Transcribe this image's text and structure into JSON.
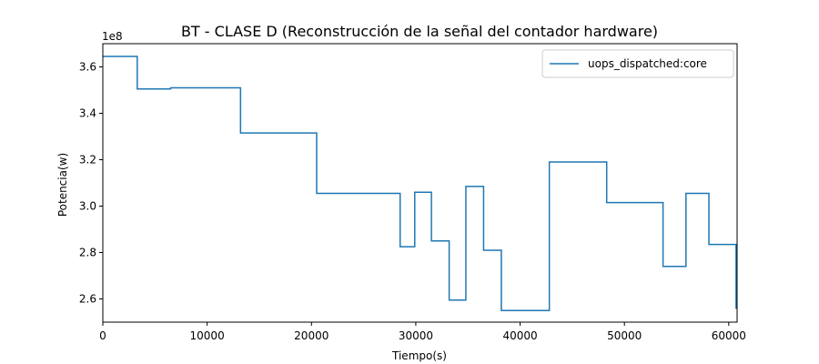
{
  "chart_data": {
    "type": "line",
    "step": true,
    "title": "BT - CLASE D (Reconstrucción de la señal del contador hardware)",
    "xlabel": "Tiempo(s)",
    "ylabel": "Potencia(w)",
    "y_offset_text": "1e8",
    "xlim": [
      0,
      60800
    ],
    "ylim": [
      2.5,
      3.7
    ],
    "y_scale_note": "values in units of 1e8",
    "xticks": [
      0,
      10000,
      20000,
      30000,
      40000,
      50000,
      60000
    ],
    "xtick_labels": [
      "0",
      "10000",
      "20000",
      "30000",
      "40000",
      "50000",
      "60000"
    ],
    "yticks": [
      2.6,
      2.8,
      3.0,
      3.2,
      3.4,
      3.6
    ],
    "ytick_labels": [
      "2.6",
      "2.8",
      "3.0",
      "3.2",
      "3.4",
      "3.6"
    ],
    "grid": false,
    "legend_position": "top-right",
    "series": [
      {
        "name": "uops_dispatched:core",
        "color": "#1f77b4",
        "x": [
          0,
          3300,
          6500,
          13200,
          20500,
          28500,
          29900,
          31500,
          33200,
          34800,
          36500,
          38200,
          42800,
          48300,
          53700,
          55900,
          58100,
          60700,
          60800
        ],
        "y": [
          3.645,
          3.505,
          3.51,
          3.315,
          3.055,
          2.825,
          3.06,
          2.85,
          2.595,
          3.085,
          2.81,
          2.55,
          3.19,
          3.015,
          2.74,
          3.055,
          2.835,
          2.56,
          2.56
        ]
      }
    ]
  }
}
